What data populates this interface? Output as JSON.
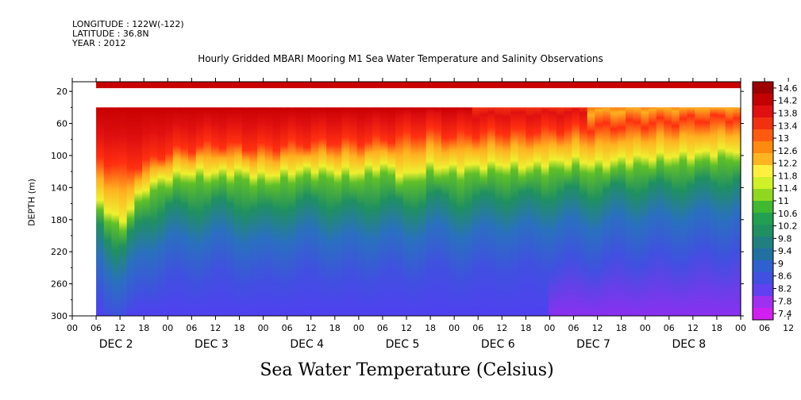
{
  "header": {
    "longitude": "LONGITUDE : 122W(-122)",
    "latitude": "LATITUDE : 36.8N",
    "year": "YEAR : 2012"
  },
  "chart_data": {
    "type": "heatmap",
    "title": "Hourly Gridded MBARI Mooring M1 Sea Water Temperature and Salinity Observations",
    "xlabel": "Sea Water Temperature (Celsius)",
    "ylabel": "DEPTH (m)",
    "y_ticks": [
      20,
      60,
      100,
      140,
      180,
      220,
      260,
      300
    ],
    "ylim": [
      300,
      0
    ],
    "x_hour_ticks": [
      "00",
      "06",
      "12",
      "18",
      "00",
      "06",
      "12",
      "18",
      "00",
      "06",
      "12",
      "18",
      "00",
      "06",
      "12",
      "18",
      "00",
      "06",
      "12",
      "18",
      "00",
      "06",
      "12",
      "18",
      "00",
      "06",
      "12",
      "18",
      "00",
      "06",
      "12",
      "18",
      "00"
    ],
    "day_labels": [
      "DEC  2",
      "DEC  3",
      "DEC  4",
      "DEC  5",
      "DEC  6",
      "DEC  7",
      "DEC  8"
    ],
    "colorbar": {
      "ticks": [
        "14.6",
        "14.2",
        "13.8",
        "13.4",
        "13",
        "12.6",
        "12.2",
        "11.8",
        "11.4",
        "11",
        "10.6",
        "10.2",
        "9.8",
        "9.4",
        "9",
        "8.6",
        "8.2",
        "7.8",
        "7.4"
      ],
      "colors": [
        "#9c0000",
        "#c20000",
        "#e01010",
        "#f23010",
        "#ff5a10",
        "#ff8a10",
        "#ffb520",
        "#fff040",
        "#d0f028",
        "#90d820",
        "#40b830",
        "#20a050",
        "#209060",
        "#208080",
        "#2070a0",
        "#3060d0",
        "#4050e0",
        "#6040f0",
        "#a030f0",
        "#d020f0"
      ]
    },
    "depth_isotherms_m": {
      "description_free": true,
      "x_hours": [
        0,
        6,
        12,
        18,
        24,
        30,
        36,
        42,
        48,
        54,
        60,
        66,
        72,
        78,
        84,
        90,
        96,
        102,
        108,
        114,
        120,
        126,
        132,
        138,
        144,
        150,
        156,
        162,
        168
      ],
      "warm_layer_bottom": [
        95,
        100,
        115,
        110,
        95,
        90,
        85,
        88,
        90,
        86,
        84,
        82,
        82,
        80,
        75,
        70,
        75,
        72,
        70,
        70,
        68,
        66,
        65,
        62,
        60,
        58,
        55,
        54,
        52
      ],
      "thermocline_mid": [
        130,
        150,
        185,
        140,
        125,
        120,
        120,
        118,
        125,
        120,
        115,
        118,
        120,
        110,
        125,
        112,
        115,
        112,
        110,
        112,
        108,
        105,
        110,
        104,
        102,
        100,
        98,
        95,
        92
      ],
      "cold_top": [
        170,
        180,
        220,
        180,
        165,
        165,
        160,
        162,
        170,
        160,
        158,
        160,
        165,
        155,
        165,
        150,
        158,
        155,
        150,
        152,
        148,
        145,
        148,
        140,
        140,
        138,
        136,
        134,
        130
      ]
    }
  }
}
